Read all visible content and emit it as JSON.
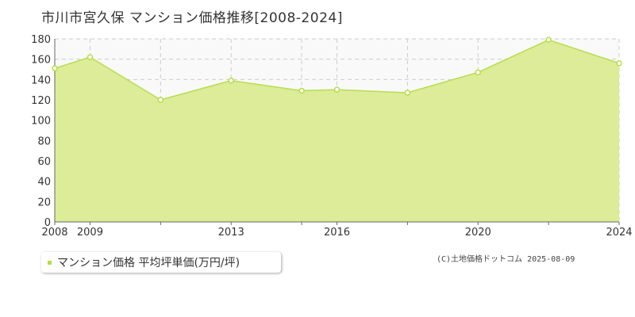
{
  "title": "市川市宮久保 マンション価格推移[2008-2024]",
  "legend_label": "マンション価格 平均坪単価(万円/坪)",
  "credit": "(C)土地価格ドットコム 2025-08-09",
  "colors": {
    "fill": "#dcec98",
    "line": "#b8dd52",
    "point_stroke": "#b5dd4b",
    "grid": "#cccccc",
    "axis_text": "#333333"
  },
  "chart_data": {
    "type": "area",
    "x": [
      2008,
      2009,
      2011,
      2013,
      2015,
      2016,
      2018,
      2020,
      2022,
      2024
    ],
    "series": [
      {
        "name": "マンション価格 平均坪単価(万円/坪)",
        "values": [
          151,
          162,
          120,
          139,
          129,
          130,
          127,
          147,
          179,
          156
        ]
      }
    ],
    "xlim": [
      2008,
      2024
    ],
    "ylim": [
      0,
      180
    ],
    "y_ticks": [
      0,
      20,
      40,
      60,
      80,
      100,
      120,
      140,
      160,
      180
    ],
    "x_tick_labels": [
      2008,
      2009,
      2013,
      2016,
      2020,
      2024
    ],
    "grid": true,
    "legend": "bottom-left"
  }
}
